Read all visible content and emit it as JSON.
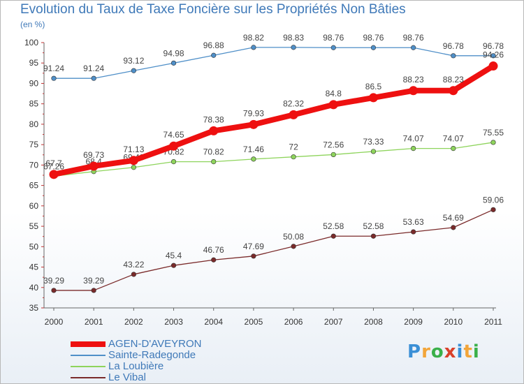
{
  "header": {
    "title": "Evolution du Taux de Taxe Foncière sur les Propriétés Non Bâties",
    "subtitle": "(en %)"
  },
  "logo": {
    "letters": [
      "P",
      "r",
      "o",
      "x",
      "i",
      "t",
      "i"
    ],
    "colors": [
      "#3a8fd6",
      "#f2a53a",
      "#3ab04a",
      "#d9412a",
      "#3a8fd6",
      "#f2a53a",
      "#3ab04a"
    ]
  },
  "chart_data": {
    "type": "line",
    "title": "Evolution du Taux de Taxe Foncière sur les Propriétés Non Bâties",
    "ylabel": "(en %)",
    "xlabel": "",
    "x": [
      "2000",
      "2001",
      "2002",
      "2003",
      "2004",
      "2005",
      "2006",
      "2007",
      "2008",
      "2009",
      "2010",
      "2011"
    ],
    "ylim": [
      35,
      100
    ],
    "yticks": [
      35,
      40,
      45,
      50,
      55,
      60,
      65,
      70,
      75,
      80,
      85,
      90,
      95,
      100
    ],
    "grid": false,
    "legend_position": "bottom-left",
    "series": [
      {
        "name": "AGEN-D'AVEYRON",
        "color": "#ee1010",
        "values": [
          67.7,
          69.73,
          71.13,
          74.65,
          78.38,
          79.93,
          82.32,
          84.8,
          86.5,
          88.23,
          88.23,
          94.26
        ],
        "labels": [
          "67.7",
          "69.73",
          "71.13",
          "74.65",
          "78.38",
          "79.93",
          "82.32",
          "84.8",
          "86.5",
          "88.23",
          "88.23",
          "94.26"
        ]
      },
      {
        "name": "Sainte-Radegonde",
        "color": "#4f8fc8",
        "values": [
          91.24,
          91.24,
          93.12,
          94.98,
          96.88,
          98.82,
          98.83,
          98.76,
          98.76,
          98.76,
          96.78,
          96.78
        ],
        "labels": [
          "91.24",
          "91.24",
          "93.12",
          "94.98",
          "96.88",
          "98.82",
          "98.83",
          "98.76",
          "98.76",
          "98.76",
          "96.78",
          "96.78"
        ]
      },
      {
        "name": "La Loubière",
        "color": "#8ed45c",
        "values": [
          67.26,
          68.4,
          69.43,
          70.82,
          70.82,
          71.46,
          72,
          72.56,
          73.33,
          74.07,
          74.07,
          75.55
        ],
        "labels": [
          "67.26",
          "68.4",
          "69.43",
          "70.82",
          "70.82",
          "71.46",
          "72",
          "72.56",
          "73.33",
          "74.07",
          "74.07",
          "75.55"
        ]
      },
      {
        "name": "Le Vibal",
        "color": "#7a2a2a",
        "values": [
          39.29,
          39.29,
          43.22,
          45.4,
          46.76,
          47.69,
          50.08,
          52.58,
          52.58,
          53.63,
          54.69,
          59.06
        ],
        "labels": [
          "39.29",
          "39.29",
          "43.22",
          "45.4",
          "46.76",
          "47.69",
          "50.08",
          "52.58",
          "52.58",
          "53.63",
          "54.69",
          "59.06"
        ]
      }
    ]
  }
}
